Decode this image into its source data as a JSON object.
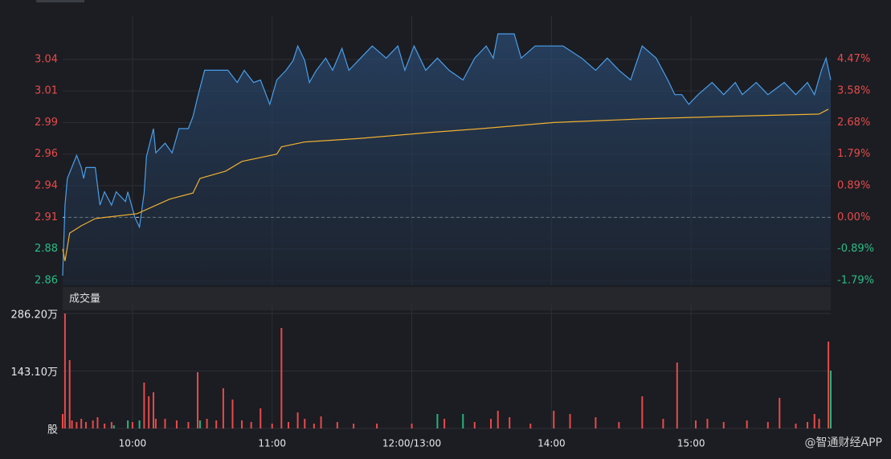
{
  "chart_data": [
    {
      "type": "line",
      "xlim": [
        0,
        330
      ],
      "ylim": [
        2.854,
        3.069
      ],
      "y2lim": [
        -1.924,
        5.464
      ],
      "baseline": 2.91,
      "up_color": "#e84a4a",
      "down_color": "#2bbd85",
      "grid": true,
      "yticks": [
        {
          "value": 2.858,
          "label": "2.86"
        },
        {
          "value": 2.884,
          "label": "2.88"
        },
        {
          "value": 2.91,
          "label": "2.91"
        },
        {
          "value": 2.936,
          "label": "2.94"
        },
        {
          "value": 2.962,
          "label": "2.96"
        },
        {
          "value": 2.988,
          "label": "2.99"
        },
        {
          "value": 3.014,
          "label": "3.01"
        },
        {
          "value": 3.04,
          "label": "3.04"
        }
      ],
      "y2ticks": [
        {
          "value": -1.79,
          "label": "-1.79%"
        },
        {
          "value": -0.89,
          "label": "-0.89%"
        },
        {
          "value": 0,
          "label": "0.00%"
        },
        {
          "value": 0.89,
          "label": "0.89%"
        },
        {
          "value": 1.79,
          "label": "1.79%"
        },
        {
          "value": 2.68,
          "label": "2.68%"
        },
        {
          "value": 3.58,
          "label": "3.58%"
        },
        {
          "value": 4.47,
          "label": "4.47%"
        }
      ],
      "series": [
        {
          "color": "#4a9eea",
          "area": true,
          "x": [
            0,
            1,
            2,
            6,
            8,
            9,
            10,
            14,
            16,
            18,
            21,
            23,
            27,
            28,
            31,
            33,
            35,
            36,
            39,
            40,
            44,
            47,
            50,
            54,
            56,
            58,
            61,
            65,
            71,
            75,
            78,
            82,
            85,
            89,
            92,
            96,
            99,
            101,
            104,
            106,
            109,
            113,
            116,
            120,
            123,
            128,
            133,
            139,
            144,
            147,
            151,
            156,
            161,
            166,
            172,
            177,
            182,
            185,
            187,
            194,
            197,
            203,
            215,
            223,
            229,
            234,
            239,
            244,
            249,
            255,
            260,
            263,
            266,
            269,
            273,
            279,
            284,
            289,
            292,
            298,
            303,
            310,
            315,
            320,
            323,
            326,
            328,
            330
          ],
          "values": [
            2.862,
            2.92,
            2.942,
            2.961,
            2.951,
            2.942,
            2.951,
            2.951,
            2.92,
            2.931,
            2.92,
            2.931,
            2.923,
            2.931,
            2.91,
            2.902,
            2.93,
            2.96,
            2.983,
            2.963,
            2.971,
            2.963,
            2.983,
            2.983,
            2.993,
            3.009,
            3.031,
            3.031,
            3.031,
            3.021,
            3.031,
            3.021,
            3.023,
            3.003,
            3.023,
            3.031,
            3.039,
            3.051,
            3.039,
            3.021,
            3.031,
            3.041,
            3.031,
            3.049,
            3.031,
            3.041,
            3.051,
            3.041,
            3.051,
            3.031,
            3.051,
            3.031,
            3.041,
            3.031,
            3.023,
            3.041,
            3.051,
            3.041,
            3.061,
            3.061,
            3.041,
            3.051,
            3.051,
            3.041,
            3.031,
            3.041,
            3.031,
            3.023,
            3.051,
            3.041,
            3.023,
            3.011,
            3.011,
            3.003,
            3.011,
            3.021,
            3.011,
            3.021,
            3.011,
            3.021,
            3.011,
            3.021,
            3.011,
            3.021,
            3.011,
            3.031,
            3.041,
            3.023
          ]
        },
        {
          "color": "#f0b030",
          "area": false,
          "x": [
            0,
            1,
            3,
            8,
            14,
            32,
            46,
            56,
            59,
            70,
            77,
            92,
            94,
            104,
            128,
            159,
            180,
            211,
            249,
            284,
            325,
            329
          ],
          "values": [
            2.884,
            2.874,
            2.897,
            2.903,
            2.909,
            2.913,
            2.925,
            2.93,
            2.942,
            2.948,
            2.956,
            2.962,
            2.968,
            2.972,
            2.975,
            2.98,
            2.983,
            2.988,
            2.991,
            2.993,
            2.995,
            2.999
          ]
        }
      ]
    },
    {
      "type": "bar",
      "title": "成交量",
      "xlim": [
        0,
        330
      ],
      "ylim": [
        0,
        290
      ],
      "yticks": [
        {
          "value": 0,
          "label": "股"
        },
        {
          "value": 143.1,
          "label": "143.10万"
        },
        {
          "value": 286.2,
          "label": "286.20万"
        }
      ],
      "xticks": [
        {
          "value": 30,
          "label": "10:00"
        },
        {
          "value": 90,
          "label": "11:00"
        },
        {
          "value": 150,
          "label": "12:00/13:00"
        },
        {
          "value": 210,
          "label": "14:00"
        },
        {
          "value": 270,
          "label": "15:00"
        }
      ],
      "x": [
        0,
        1,
        3,
        4,
        6,
        8,
        10,
        13,
        15,
        18,
        21,
        22,
        28,
        30,
        33,
        35,
        37,
        39,
        40,
        44,
        49,
        54,
        58,
        59,
        62,
        66,
        69,
        73,
        77,
        81,
        85,
        90,
        94,
        97,
        101,
        104,
        108,
        111,
        118,
        125,
        135,
        150,
        161,
        164,
        172,
        177,
        184,
        187,
        192,
        201,
        211,
        218,
        229,
        239,
        249,
        258,
        264,
        272,
        277,
        284,
        294,
        303,
        308,
        315,
        320,
        323,
        325,
        329,
        330
      ],
      "values": [
        36,
        286,
        170,
        20,
        16,
        24,
        16,
        20,
        28,
        12,
        16,
        8,
        20,
        16,
        20,
        114,
        80,
        90,
        24,
        24,
        20,
        16,
        140,
        20,
        24,
        20,
        100,
        72,
        20,
        16,
        50,
        12,
        250,
        16,
        40,
        24,
        12,
        30,
        16,
        12,
        12,
        12,
        36,
        24,
        36,
        16,
        24,
        44,
        28,
        12,
        44,
        36,
        28,
        16,
        80,
        24,
        164,
        20,
        24,
        16,
        20,
        16,
        76,
        12,
        16,
        36,
        24,
        216,
        144
      ],
      "colors": [
        "#e84a4a",
        "#e84a4a",
        "#e84a4a",
        "#e84a4a",
        "#e84a4a",
        "#e84a4a",
        "#e84a4a",
        "#e84a4a",
        "#e84a4a",
        "#e84a4a",
        "#e84a4a",
        "#26b37f",
        "#26b37f",
        "#e84a4a",
        "#26b37f",
        "#e84a4a",
        "#e84a4a",
        "#e84a4a",
        "#e84a4a",
        "#e84a4a",
        "#e84a4a",
        "#e84a4a",
        "#e84a4a",
        "#26b37f",
        "#e84a4a",
        "#e84a4a",
        "#e84a4a",
        "#e84a4a",
        "#e84a4a",
        "#e84a4a",
        "#e84a4a",
        "#e84a4a",
        "#e84a4a",
        "#e84a4a",
        "#e84a4a",
        "#e84a4a",
        "#e84a4a",
        "#e84a4a",
        "#e84a4a",
        "#e84a4a",
        "#e84a4a",
        "#e84a4a",
        "#26b37f",
        "#e84a4a",
        "#26b37f",
        "#e84a4a",
        "#e84a4a",
        "#e84a4a",
        "#e84a4a",
        "#e84a4a",
        "#e84a4a",
        "#e84a4a",
        "#e84a4a",
        "#e84a4a",
        "#e84a4a",
        "#e84a4a",
        "#e84a4a",
        "#e84a4a",
        "#e84a4a",
        "#e84a4a",
        "#e84a4a",
        "#e84a4a",
        "#e84a4a",
        "#e84a4a",
        "#e84a4a",
        "#e84a4a",
        "#e84a4a",
        "#e84a4a",
        "#26b37f"
      ]
    }
  ],
  "watermark": "@智通财经APP"
}
